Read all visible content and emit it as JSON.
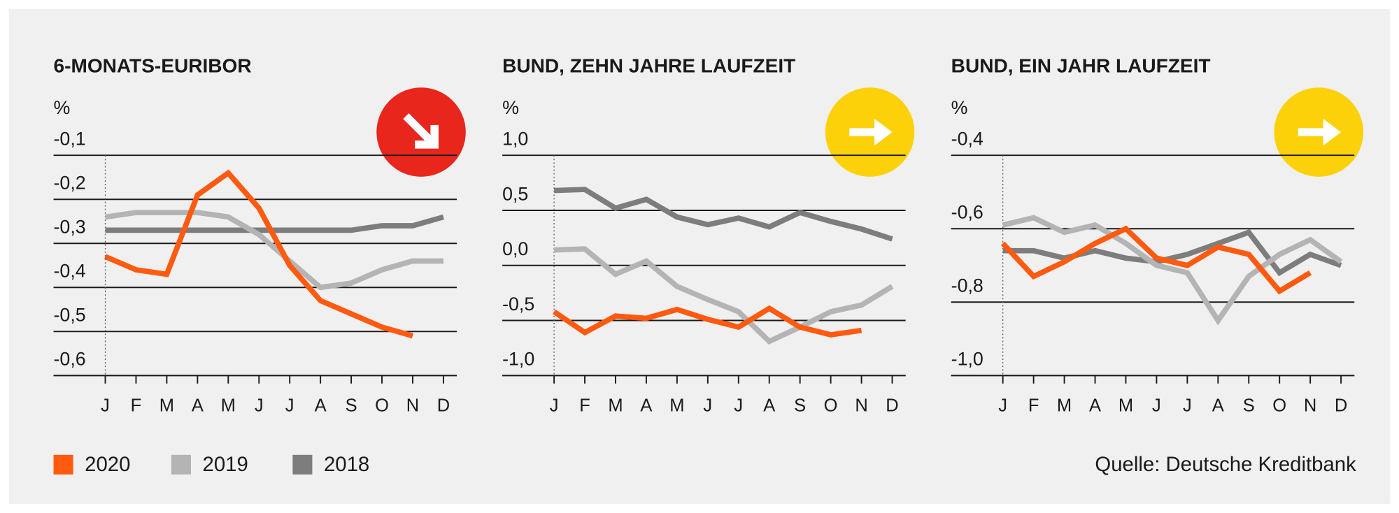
{
  "chart_data": [
    {
      "type": "line",
      "title": "6-MONATS-EURIBOR",
      "y_label": "%",
      "categories": [
        "J",
        "F",
        "M",
        "A",
        "M",
        "J",
        "J",
        "A",
        "S",
        "O",
        "N",
        "D"
      ],
      "ylim": [
        -0.6,
        -0.1
      ],
      "yticks": [
        {
          "value": -0.1,
          "label": "-0,1"
        },
        {
          "value": -0.2,
          "label": "-0,2"
        },
        {
          "value": -0.3,
          "label": "-0,3"
        },
        {
          "value": -0.4,
          "label": "-0,4"
        },
        {
          "value": -0.5,
          "label": "-0,5"
        },
        {
          "value": -0.6,
          "label": "-0,6"
        }
      ],
      "grid": true,
      "series": [
        {
          "name": "2020",
          "color": "#ff5a0f",
          "values": [
            -0.33,
            -0.36,
            -0.37,
            -0.19,
            -0.14,
            -0.22,
            -0.35,
            -0.43,
            -0.46,
            -0.49,
            -0.51,
            null
          ]
        },
        {
          "name": "2019",
          "color": "#b4b4b4",
          "values": [
            -0.24,
            -0.23,
            -0.23,
            -0.23,
            -0.24,
            -0.28,
            -0.34,
            -0.4,
            -0.39,
            -0.36,
            -0.34,
            -0.34
          ]
        },
        {
          "name": "2018",
          "color": "#7d7d7d",
          "values": [
            -0.27,
            -0.27,
            -0.27,
            -0.27,
            -0.27,
            -0.27,
            -0.27,
            -0.27,
            -0.27,
            -0.26,
            -0.26,
            -0.24
          ]
        }
      ]
    },
    {
      "type": "line",
      "title": "BUND, ZEHN JAHRE LAUFZEIT",
      "y_label": "%",
      "categories": [
        "J",
        "F",
        "M",
        "A",
        "M",
        "J",
        "J",
        "A",
        "S",
        "O",
        "N",
        "D"
      ],
      "ylim": [
        -1.0,
        1.0
      ],
      "yticks": [
        {
          "value": 1.0,
          "label": "1,0"
        },
        {
          "value": 0.5,
          "label": "0,5"
        },
        {
          "value": 0.0,
          "label": "0,0"
        },
        {
          "value": -0.5,
          "label": "-0,5"
        },
        {
          "value": -1.0,
          "label": "-1,0"
        }
      ],
      "grid": true,
      "series": [
        {
          "name": "2020",
          "color": "#ff5a0f",
          "values": [
            -0.42,
            -0.61,
            -0.46,
            -0.48,
            -0.4,
            -0.49,
            -0.56,
            -0.39,
            -0.56,
            -0.63,
            -0.59,
            null
          ]
        },
        {
          "name": "2019",
          "color": "#b4b4b4",
          "values": [
            0.14,
            0.15,
            -0.08,
            0.04,
            -0.19,
            -0.31,
            -0.42,
            -0.69,
            -0.56,
            -0.42,
            -0.36,
            -0.19
          ]
        },
        {
          "name": "2018",
          "color": "#7d7d7d",
          "values": [
            0.68,
            0.69,
            0.52,
            0.6,
            0.44,
            0.37,
            0.43,
            0.35,
            0.48,
            0.4,
            0.33,
            0.24
          ]
        }
      ]
    },
    {
      "type": "line",
      "title": "BUND, EIN JAHR LAUFZEIT",
      "y_label": "%",
      "categories": [
        "J",
        "F",
        "M",
        "A",
        "M",
        "J",
        "J",
        "A",
        "S",
        "O",
        "N",
        "D"
      ],
      "ylim": [
        -1.0,
        -0.4
      ],
      "yticks": [
        {
          "value": -0.4,
          "label": "-0,4"
        },
        {
          "value": -0.6,
          "label": "-0,6"
        },
        {
          "value": -0.8,
          "label": "-0,8"
        },
        {
          "value": -1.0,
          "label": "-1,0"
        }
      ],
      "grid": true,
      "series": [
        {
          "name": "2020",
          "color": "#ff5a0f",
          "values": [
            -0.64,
            -0.73,
            -0.69,
            -0.64,
            -0.6,
            -0.68,
            -0.7,
            -0.65,
            -0.67,
            -0.77,
            -0.72,
            null
          ]
        },
        {
          "name": "2019",
          "color": "#b4b4b4",
          "values": [
            -0.59,
            -0.57,
            -0.61,
            -0.59,
            -0.64,
            -0.7,
            -0.72,
            -0.85,
            -0.73,
            -0.67,
            -0.63,
            -0.69
          ]
        },
        {
          "name": "2018",
          "color": "#7d7d7d",
          "values": [
            -0.66,
            -0.66,
            -0.68,
            -0.66,
            -0.68,
            -0.69,
            -0.67,
            -0.64,
            -0.61,
            -0.72,
            -0.67,
            -0.7
          ]
        }
      ]
    }
  ],
  "source": "Quelle: Deutsche Kreditbank"
}
